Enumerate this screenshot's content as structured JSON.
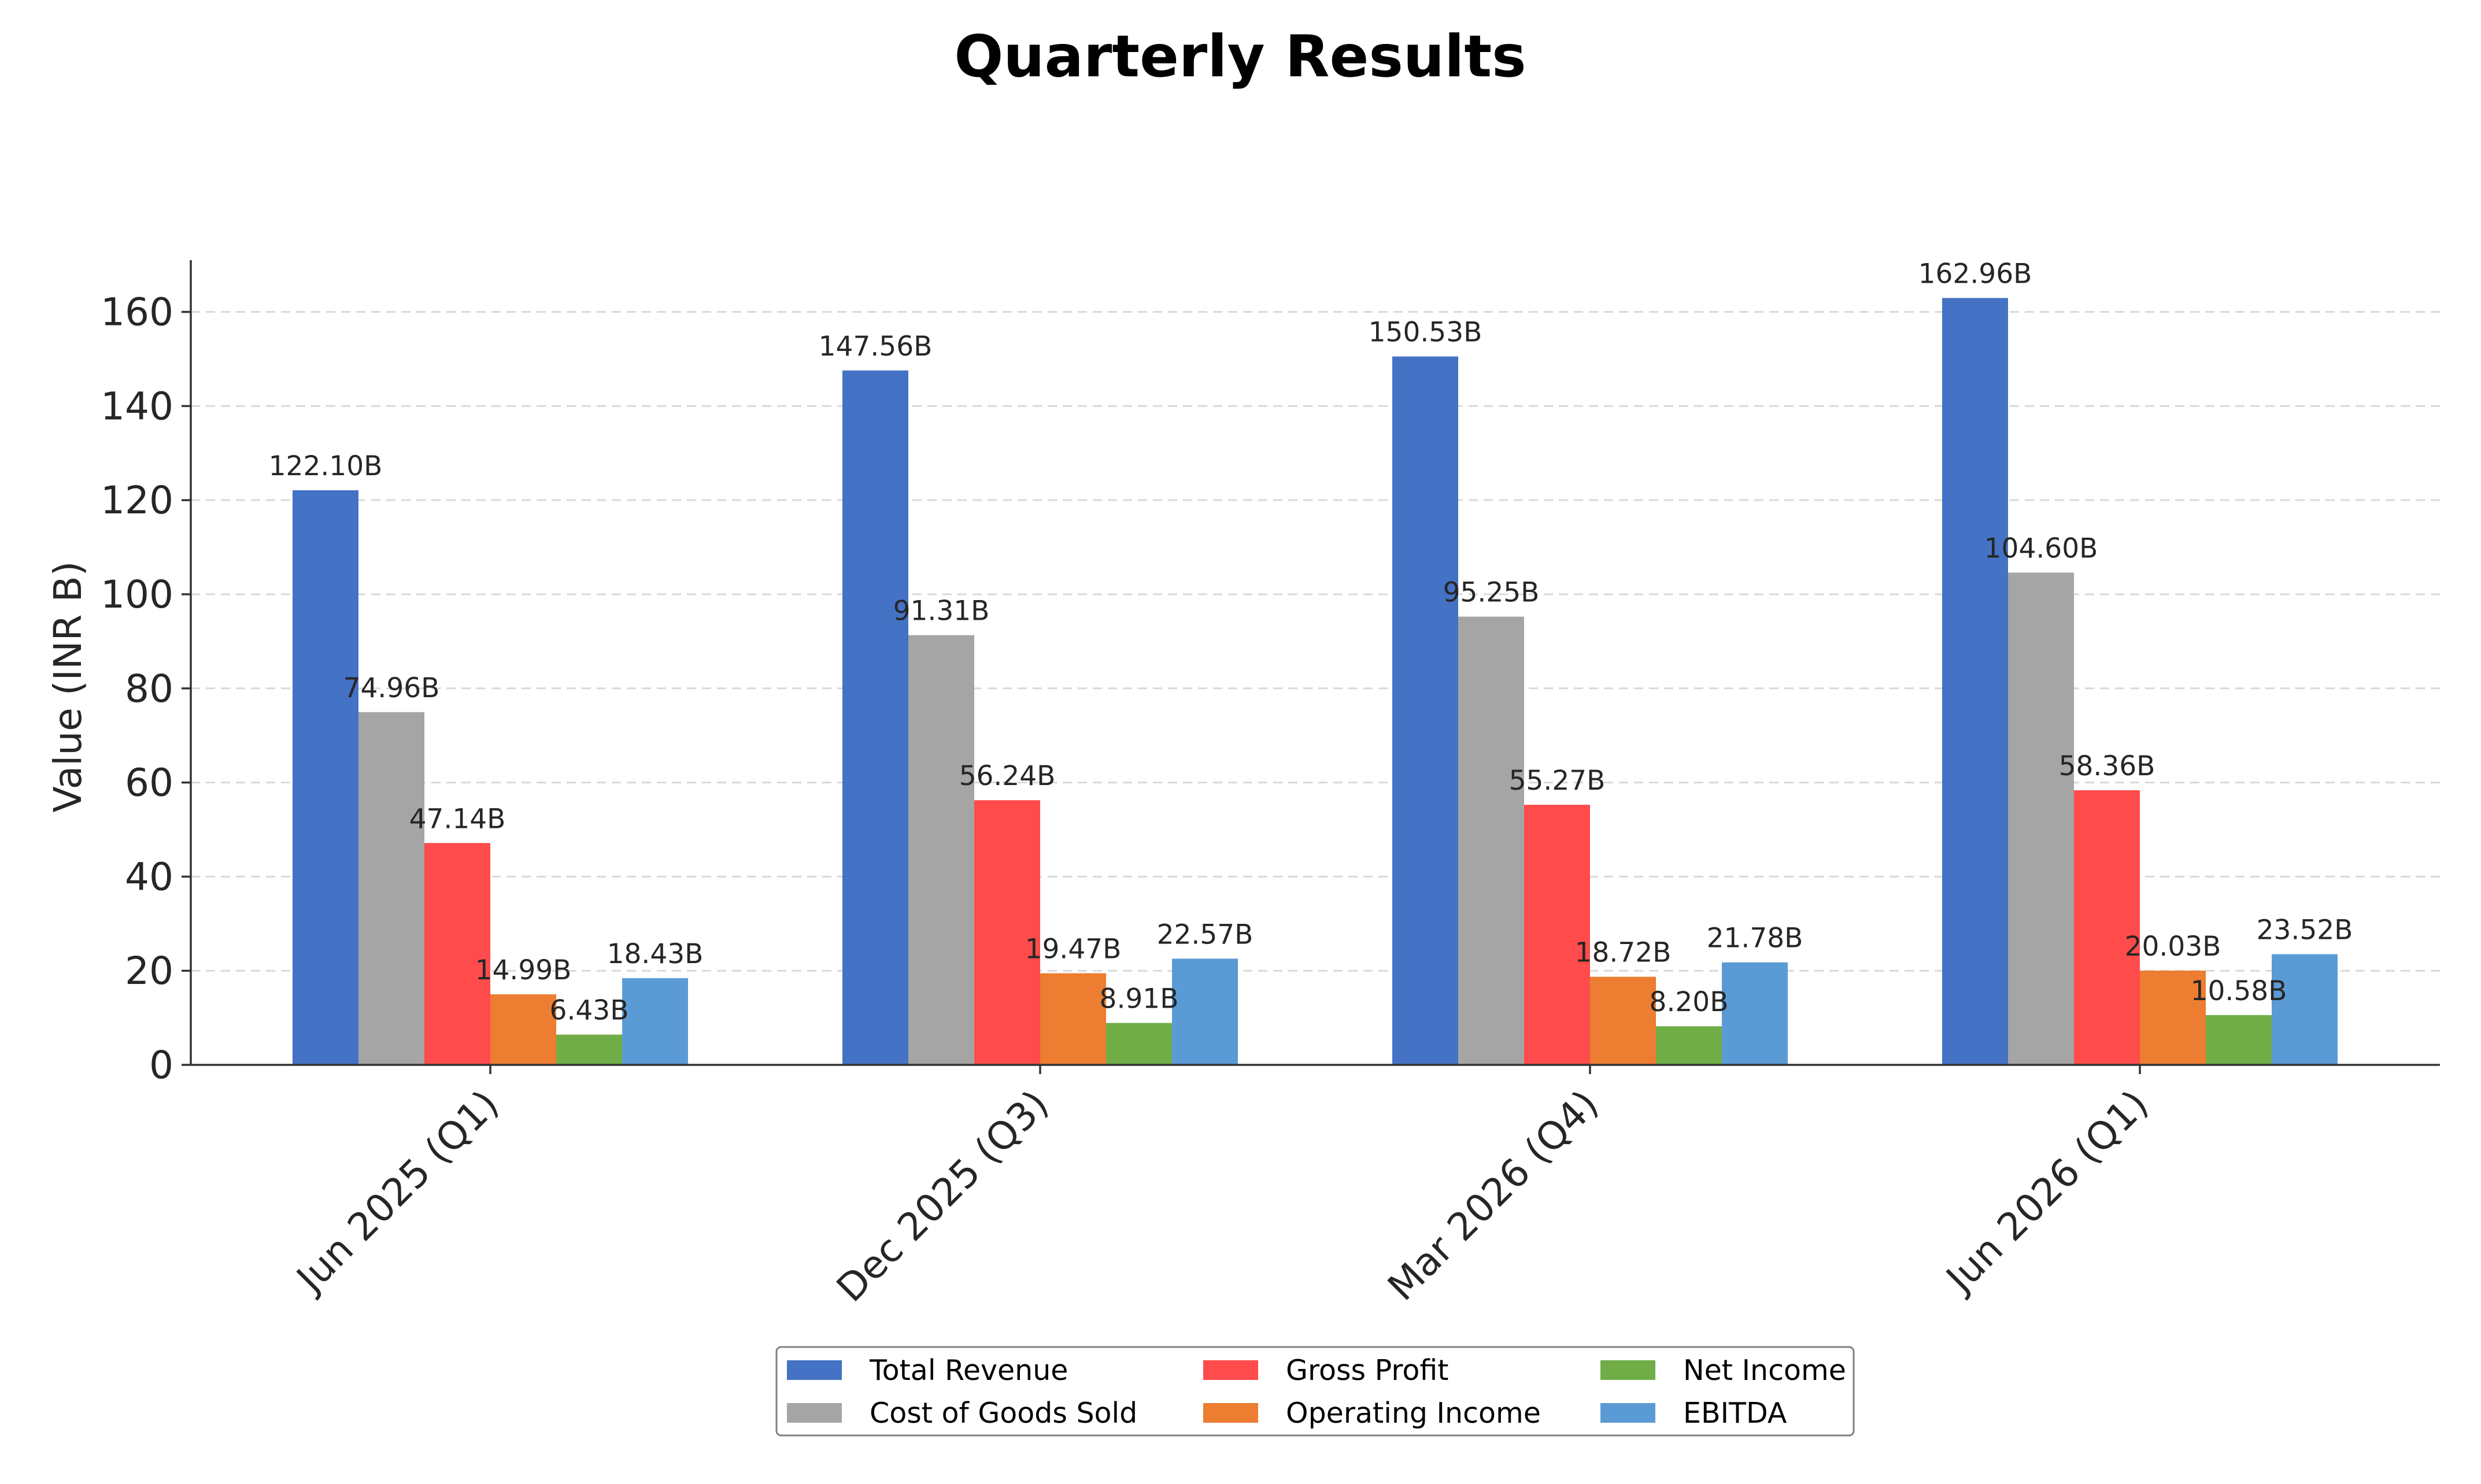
{
  "chart_data": {
    "type": "bar",
    "title": "Quarterly Results",
    "xlabel": "",
    "ylabel": "Value (INR B)",
    "ylim": [
      0,
      171
    ],
    "yticks": [
      0,
      20,
      40,
      60,
      80,
      100,
      120,
      140,
      160
    ],
    "grid": true,
    "legend_position": "bottom-center",
    "categories": [
      "Jun 2025 (Q1)",
      "Dec 2025 (Q3)",
      "Mar 2026 (Q4)",
      "Jun 2026 (Q1)"
    ],
    "series": [
      {
        "name": "Total Revenue",
        "color": "#4472C4",
        "values": [
          122.1,
          147.56,
          150.53,
          162.96
        ],
        "labels": [
          "122.10B",
          "147.56B",
          "150.53B",
          "162.96B"
        ]
      },
      {
        "name": "Cost of Goods Sold",
        "color": "#A5A5A5",
        "values": [
          74.96,
          91.31,
          95.25,
          104.6
        ],
        "labels": [
          "74.96B",
          "91.31B",
          "95.25B",
          "104.60B"
        ]
      },
      {
        "name": "Gross Profit",
        "color": "#FF4B4B",
        "values": [
          47.14,
          56.24,
          55.27,
          58.36
        ],
        "labels": [
          "47.14B",
          "56.24B",
          "55.27B",
          "58.36B"
        ]
      },
      {
        "name": "Operating Income",
        "color": "#ED7D31",
        "values": [
          14.99,
          19.47,
          18.72,
          20.03
        ],
        "labels": [
          "14.99B",
          "19.47B",
          "18.72B",
          "20.03B"
        ]
      },
      {
        "name": "Net Income",
        "color": "#70AD47",
        "values": [
          6.43,
          8.91,
          8.2,
          10.58
        ],
        "labels": [
          "6.43B",
          "8.91B",
          "8.20B",
          "10.58B"
        ]
      },
      {
        "name": "EBITDA",
        "color": "#5B9BD5",
        "values": [
          18.43,
          22.57,
          21.78,
          23.52
        ],
        "labels": [
          "18.43B",
          "22.57B",
          "21.78B",
          "23.52B"
        ]
      }
    ]
  }
}
